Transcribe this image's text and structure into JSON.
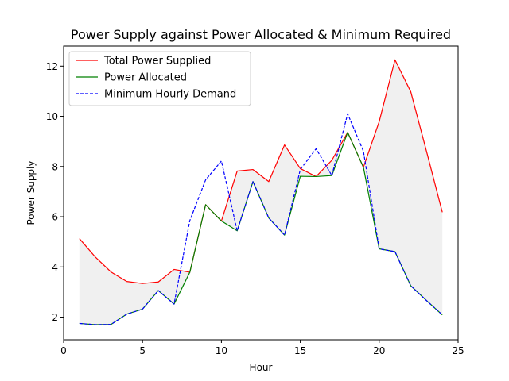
{
  "chart_data": {
    "type": "line",
    "title": "Power Supply against Power Allocated & Minimum Required",
    "xlabel": "Hour",
    "ylabel": "Power Supply",
    "xlim": [
      0,
      25
    ],
    "ylim": [
      1.1,
      12.8
    ],
    "xticks": [
      0,
      5,
      10,
      15,
      20,
      25
    ],
    "yticks": [
      2,
      4,
      6,
      8,
      10,
      12
    ],
    "grid": false,
    "legend_position": "upper-left",
    "fill_between": {
      "upper": "Total Power Supplied",
      "lower": "Power Allocated",
      "color": "#f0f0f0"
    },
    "x": [
      1,
      2,
      3,
      4,
      5,
      6,
      7,
      8,
      9,
      10,
      11,
      12,
      13,
      14,
      15,
      16,
      17,
      18,
      19,
      20,
      21,
      22,
      23,
      24
    ],
    "series": [
      {
        "name": "Total Power Supplied",
        "color": "#ff0000",
        "style": "solid",
        "values": [
          5.13,
          4.4,
          3.8,
          3.42,
          3.34,
          3.4,
          3.9,
          3.79,
          6.48,
          5.83,
          7.82,
          7.88,
          7.4,
          8.86,
          7.92,
          7.6,
          8.25,
          9.36,
          7.97,
          9.79,
          12.25,
          10.98,
          8.6,
          6.18
        ]
      },
      {
        "name": "Power Allocated",
        "color": "#008000",
        "style": "solid",
        "values": [
          1.75,
          1.7,
          1.71,
          2.12,
          2.32,
          3.06,
          2.52,
          3.79,
          6.48,
          5.83,
          5.44,
          7.4,
          5.95,
          5.27,
          7.61,
          7.6,
          7.64,
          9.36,
          7.97,
          4.72,
          4.61,
          3.25,
          2.66,
          2.09
        ]
      },
      {
        "name": "Minimum Hourly Demand",
        "color": "#0000ff",
        "style": "dashed",
        "values": [
          1.75,
          1.7,
          1.71,
          2.12,
          2.32,
          3.06,
          2.52,
          5.85,
          7.47,
          8.22,
          5.44,
          7.4,
          5.95,
          5.27,
          7.88,
          8.71,
          7.64,
          10.1,
          8.61,
          4.72,
          4.61,
          3.25,
          2.66,
          2.09
        ]
      }
    ]
  }
}
